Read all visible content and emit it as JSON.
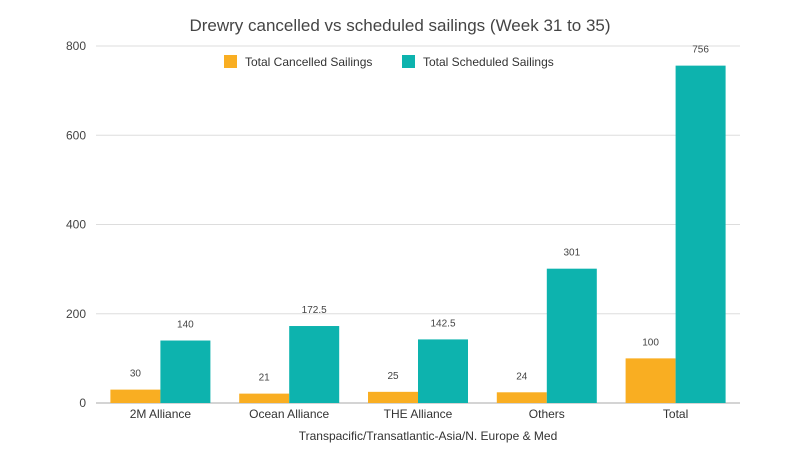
{
  "chart_data": {
    "type": "bar",
    "title": "Drewry cancelled vs scheduled sailings (Week 31 to 35)",
    "xlabel": "Transpacific/Transatlantic-Asia/N. Europe & Med",
    "ylabel": "",
    "categories": [
      "2M Alliance",
      "Ocean Alliance",
      "THE Alliance",
      "Others",
      "Total"
    ],
    "series": [
      {
        "name": "Total Cancelled Sailings",
        "color": "#F9AE22",
        "values": [
          30,
          21,
          25,
          24,
          100
        ],
        "labels": [
          "30",
          "21",
          "25",
          "24",
          "100"
        ]
      },
      {
        "name": "Total Scheduled Sailings",
        "color": "#0DB3AE",
        "values": [
          140,
          172.5,
          142.5,
          301,
          756
        ],
        "labels": [
          "140",
          "172.5",
          "142.5",
          "301",
          "756"
        ]
      }
    ],
    "ylim": [
      0,
      800
    ],
    "yticks": [
      0,
      200,
      400,
      600,
      800
    ],
    "ytick_labels": [
      "0",
      "200",
      "400",
      "600",
      "800"
    ],
    "grid": true,
    "legend_position": "top-center"
  }
}
